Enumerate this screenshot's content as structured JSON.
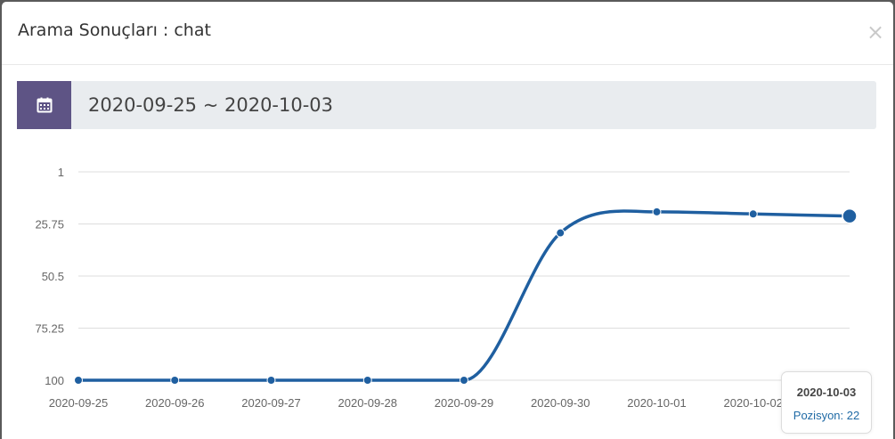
{
  "modal": {
    "title": "Arama Sonuçları : chat",
    "close_label": "×"
  },
  "date_range": {
    "value": "2020-09-25 ~ 2020-10-03",
    "icon": "calendar-icon",
    "addon_color": "#5e5485"
  },
  "tooltip": {
    "date": "2020-10-03",
    "series_label": "Pozisyon",
    "value_text": "Pozisyon: 22"
  },
  "chart_data": {
    "type": "line",
    "x": [
      "2020-09-25",
      "2020-09-26",
      "2020-09-27",
      "2020-09-28",
      "2020-09-29",
      "2020-09-30",
      "2020-10-01",
      "2020-10-02",
      "2020-10-03"
    ],
    "series": [
      {
        "values": [
          100,
          100,
          100,
          100,
          100,
          30,
          20,
          21,
          22
        ],
        "color": "#1f5fa0"
      }
    ],
    "y_ticks": [
      "1",
      "25.75",
      "50.5",
      "75.25",
      "100"
    ],
    "y_tick_values": [
      1,
      25.75,
      50.5,
      75.25,
      100
    ],
    "ylim": [
      1,
      100
    ],
    "y_reversed": true,
    "grid": true,
    "smooth": true,
    "highlighted_point": "2020-10-03"
  }
}
